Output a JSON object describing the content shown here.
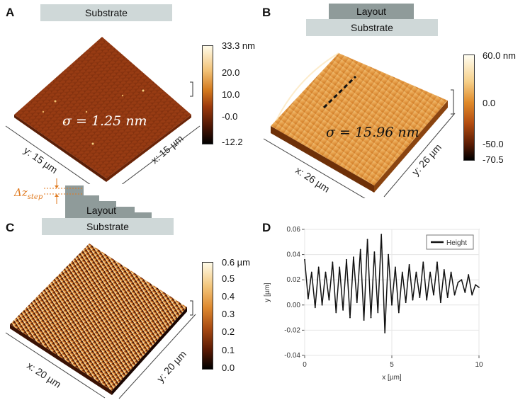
{
  "panels": {
    "a": {
      "label": "A",
      "substrate": "Substrate",
      "colorbar": {
        "max": "33.3 nm",
        "t1": "20.0",
        "t2": "10.0",
        "t3": "-0.0",
        "min": "-12.2"
      },
      "sigma": "σ = 1.25 nm",
      "x_axis": "x: 15 µm",
      "y_axis": "y: 15 µm"
    },
    "b": {
      "label": "B",
      "layout": "Layout",
      "substrate": "Substrate",
      "colorbar": {
        "max": "60.0 nm",
        "t1": "0.0",
        "t2": "-50.0",
        "min": "-70.5"
      },
      "sigma": "σ = 15.96 nm",
      "x_axis": "x: 26 µm",
      "y_axis": "y: 26 µm"
    },
    "step": {
      "delta_label": "Δz",
      "delta_sub": "step",
      "layout": "Layout"
    },
    "c": {
      "label": "C",
      "substrate": "Substrate",
      "colorbar": {
        "max": "0.6 µm",
        "t1": "0.5",
        "t2": "0.4",
        "t3": "0.3",
        "t4": "0.2",
        "t5": "0.1",
        "min": "0.0"
      },
      "x_axis": "x: 20 µm",
      "y_axis": "y: 20 µm"
    },
    "d": {
      "label": "D"
    }
  },
  "colors": {
    "accent": "#e07a1f",
    "substrate": "#cfd8d8",
    "layout": "#8f9b9a"
  },
  "chart_data": {
    "type": "line",
    "title": "",
    "xlabel": "x [µm]",
    "ylabel": "y [µm]",
    "xlim": [
      0,
      10
    ],
    "ylim": [
      -0.04,
      0.06
    ],
    "xticks": [
      "0",
      "5",
      "10"
    ],
    "yticks": [
      "0.06",
      "0.04",
      "0.02",
      "0.00",
      "-0.02",
      "-0.04"
    ],
    "legend": "top-right",
    "series": [
      {
        "name": "Height",
        "x": [
          0,
          0.2,
          0.4,
          0.6,
          0.8,
          1.0,
          1.2,
          1.4,
          1.6,
          1.8,
          2.0,
          2.2,
          2.4,
          2.6,
          2.8,
          3.0,
          3.2,
          3.4,
          3.6,
          3.8,
          4.0,
          4.2,
          4.4,
          4.6,
          4.8,
          5.0,
          5.2,
          5.4,
          5.6,
          5.8,
          6.0,
          6.2,
          6.4,
          6.6,
          6.8,
          7.0,
          7.2,
          7.4,
          7.6,
          7.8,
          8.0,
          8.2,
          8.4,
          8.6,
          8.8,
          9.0,
          9.2,
          9.4,
          9.6,
          9.8,
          10.0
        ],
        "y": [
          0.036,
          0.005,
          0.026,
          -0.002,
          0.03,
          0.0,
          0.026,
          0.004,
          0.034,
          -0.006,
          0.03,
          -0.004,
          0.036,
          -0.01,
          0.038,
          0.002,
          0.044,
          -0.012,
          0.052,
          -0.01,
          0.042,
          -0.006,
          0.056,
          -0.022,
          0.04,
          0.0,
          0.03,
          -0.006,
          0.026,
          0.002,
          0.032,
          0.004,
          0.026,
          0.006,
          0.034,
          0.004,
          0.026,
          0.008,
          0.034,
          0.002,
          0.028,
          0.006,
          0.026,
          0.008,
          0.018,
          0.02,
          0.01,
          0.024,
          0.008,
          0.016,
          0.014
        ]
      }
    ]
  }
}
